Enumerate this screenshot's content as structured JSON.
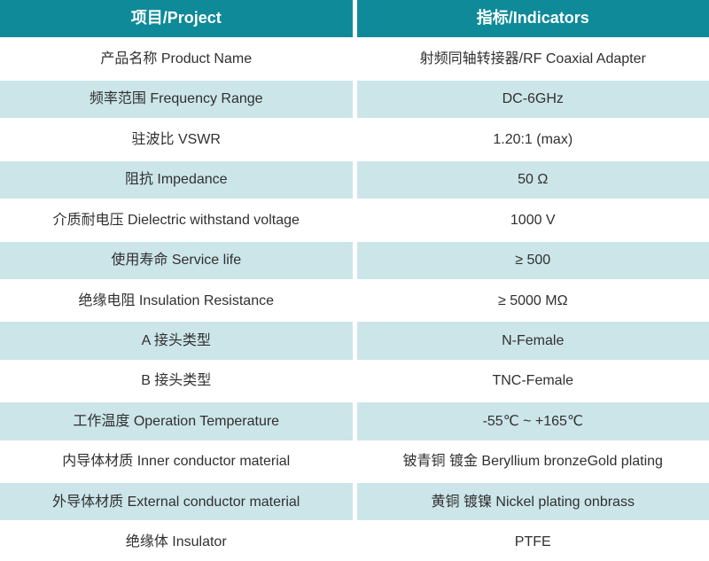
{
  "table": {
    "header": {
      "project": "项目/Project",
      "indicators": "指标/Indicators"
    },
    "rows": [
      {
        "project": "产品名称 Product Name",
        "indicator": "射频同轴转接器/RF Coaxial Adapter"
      },
      {
        "project": "频率范围 Frequency Range",
        "indicator": "DC-6GHz"
      },
      {
        "project": "驻波比 VSWR",
        "indicator": "1.20:1 (max)"
      },
      {
        "project": "阻抗 Impedance",
        "indicator": "50 Ω"
      },
      {
        "project": "介质耐电压 Dielectric withstand voltage",
        "indicator": "1000 V"
      },
      {
        "project": "使用寿命 Service life",
        "indicator": "≥ 500"
      },
      {
        "project": "绝缘电阻 Insulation Resistance",
        "indicator": "≥ 5000 MΩ"
      },
      {
        "project": "A 接头类型",
        "indicator": "N-Female"
      },
      {
        "project": "B 接头类型",
        "indicator": "TNC-Female"
      },
      {
        "project": "工作温度 Operation Temperature",
        "indicator": "-55℃ ~ +165℃"
      },
      {
        "project": "内导体材质 Inner conductor material",
        "indicator": "铍青铜 镀金 Beryllium bronzeGold plating"
      },
      {
        "project": "外导体材质 External conductor material",
        "indicator": "黄铜 镀镍 Nickel plating onbrass"
      },
      {
        "project": "绝缘体 Insulator",
        "indicator": "PTFE"
      }
    ],
    "colors": {
      "header_bg": "#0e8a99",
      "header_text": "#ffffff",
      "alt_row_bg": "#cce5e9",
      "body_text": "#303030",
      "divider": "#ffffff"
    }
  }
}
